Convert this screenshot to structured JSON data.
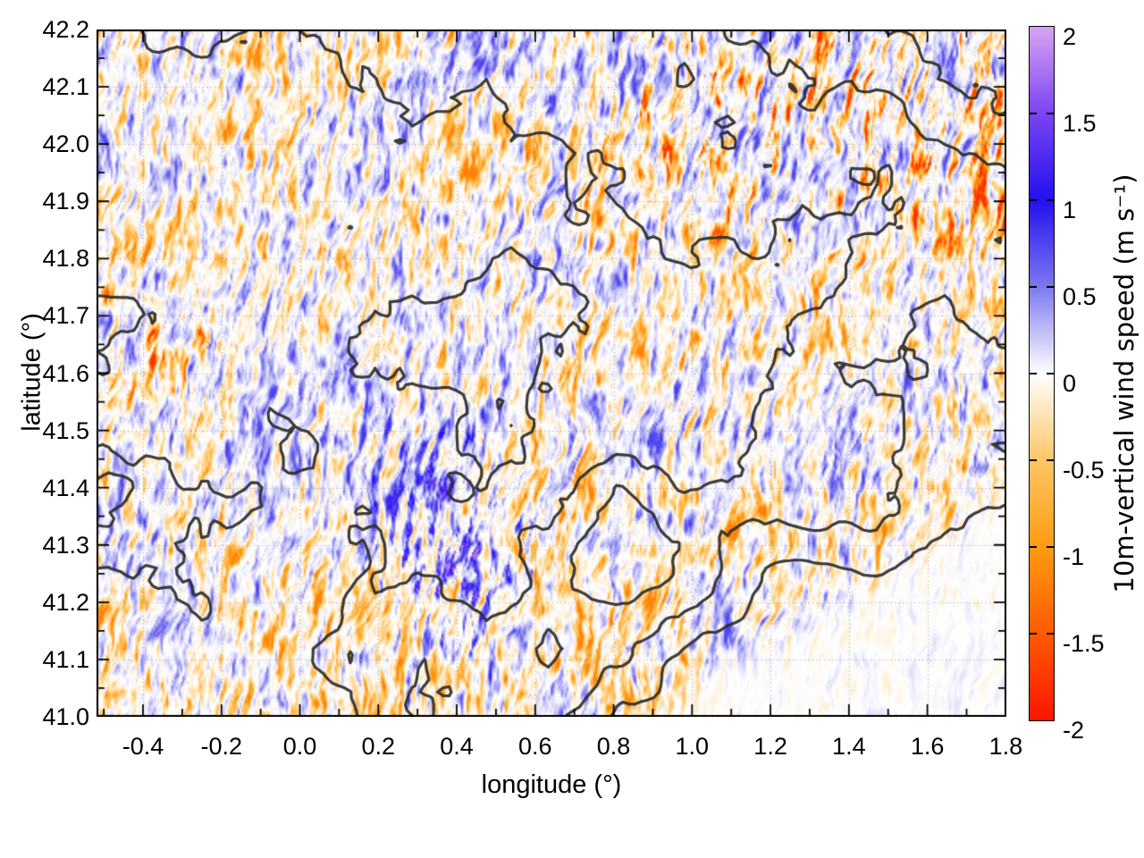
{
  "chart_data": {
    "type": "heatmap",
    "subtype": "filled-field-with-contour-lines",
    "title": "",
    "xlabel": "longitude (°)",
    "ylabel": "latitude (°)",
    "xlim": [
      -0.5185,
      1.802
    ],
    "ylim": [
      41.0,
      42.2
    ],
    "grid": true,
    "x_tick_values": [
      -0.4,
      -0.2,
      0.0,
      0.2,
      0.4,
      0.6,
      0.8,
      1.0,
      1.2,
      1.4,
      1.6,
      1.8
    ],
    "x_ticks": [
      "-0.4",
      "-0.2",
      "0.0",
      "0.2",
      "0.4",
      "0.6",
      "0.8",
      "1.0",
      "1.2",
      "1.4",
      "1.6",
      "1.8"
    ],
    "x_minor_step": 0.1,
    "y_tick_values": [
      41.0,
      41.1,
      41.2,
      41.3,
      41.4,
      41.5,
      41.6,
      41.7,
      41.8,
      41.9,
      42.0,
      42.1,
      42.2
    ],
    "y_ticks": [
      "41.0",
      "41.1",
      "41.2",
      "41.3",
      "41.4",
      "41.5",
      "41.6",
      "41.7",
      "41.8",
      "41.9",
      "42.0",
      "42.1",
      "42.2"
    ],
    "y_minor_step": 0.05,
    "colorbar": {
      "label": "10m-vertical wind speed (m s⁻¹)",
      "range": [
        -2,
        2
      ],
      "tick_values": [
        2,
        1.5,
        1,
        0.5,
        0,
        -0.5,
        -1,
        -1.5,
        -2
      ],
      "ticks": [
        "2",
        "1.5",
        "1",
        "0.5",
        "0",
        "-0.5",
        "-1",
        "-1.5",
        "-2"
      ],
      "palette_stops": [
        {
          "v": 2.0,
          "color": "#d9a2f2"
        },
        {
          "v": 1.5,
          "color": "#7a45f2"
        },
        {
          "v": 1.0,
          "color": "#2410ee"
        },
        {
          "v": 0.5,
          "color": "#7d78f0"
        },
        {
          "v": 0.0,
          "color": "#ffffff"
        },
        {
          "v": -0.5,
          "color": "#ffc566"
        },
        {
          "v": -1.0,
          "color": "#ff9b12"
        },
        {
          "v": -1.5,
          "color": "#ff5a00"
        },
        {
          "v": -2.0,
          "color": "#fb1500"
        }
      ]
    },
    "field_pattern": {
      "background": "near-zero vertical wind (white), fine quasi-vertical filaments of weak downdraft (pale orange) and updraft (pale blue)",
      "regions": [
        {
          "area": "northeast (lon > 0.5, lat > 41.8)",
          "value": "downdraft streaks to about -1 (orange wash)"
        },
        {
          "area": "west ridge (lon about -0.4, lat about 41.65)",
          "value": "downdraft band to about -0.9"
        },
        {
          "area": "center-south (lon 0.25-0.55, lat 41.1-41.45)",
          "value": "mixed strong updraft/downdraft knots, about +1 to -1"
        },
        {
          "area": "southeast offshore corner (lon > 1.0, lat < 41.3)",
          "value": "calm, near 0"
        }
      ]
    },
    "contours": {
      "description": "thick dark terrain-like contour lines overlaid on the field",
      "levels": [
        1,
        2,
        3,
        4
      ],
      "color": "#2d2d2d",
      "proxy_grid_extent": {
        "lon": [
          -0.5185,
          1.802
        ],
        "lat": [
          42.2,
          41.0
        ]
      },
      "proxy_grid": [
        [
          1.6,
          2.2,
          2.4,
          1.8,
          2.4,
          2.6,
          2.2,
          2.8,
          2.4,
          2.2,
          3.0,
          3.8,
          4.2,
          4.4,
          4.6
        ],
        [
          1.4,
          1.8,
          1.6,
          1.5,
          2.0,
          2.2,
          1.8,
          2.4,
          2.6,
          2.0,
          2.6,
          3.2,
          2.8,
          3.6,
          4.2
        ],
        [
          0.9,
          1.3,
          1.6,
          1.4,
          1.6,
          1.8,
          1.5,
          1.6,
          2.2,
          2.4,
          2.0,
          2.4,
          2.2,
          2.6,
          3.0
        ],
        [
          1.2,
          1.5,
          1.2,
          1.4,
          1.2,
          1.5,
          1.3,
          1.6,
          1.8,
          2.2,
          2.4,
          1.8,
          2.0,
          2.4,
          2.2
        ],
        [
          2.3,
          2.0,
          1.6,
          1.2,
          1.5,
          0.8,
          0.7,
          0.8,
          1.4,
          1.8,
          1.6,
          2.0,
          2.4,
          1.8,
          2.6
        ],
        [
          2.1,
          1.8,
          1.4,
          1.6,
          1.1,
          0.7,
          0.6,
          0.9,
          1.2,
          1.6,
          2.0,
          2.4,
          1.8,
          2.2,
          1.6
        ],
        [
          1.1,
          0.9,
          1.3,
          0.8,
          1.5,
          1.2,
          0.9,
          1.3,
          1.8,
          1.5,
          2.2,
          2.6,
          2.4,
          1.6,
          2.0
        ],
        [
          0.8,
          1.2,
          0.9,
          1.4,
          1.8,
          1.5,
          1.2,
          2.0,
          3.4,
          2.6,
          2.2,
          2.8,
          2.0,
          1.4,
          1.1
        ],
        [
          1.3,
          1.0,
          1.5,
          1.2,
          1.8,
          2.2,
          1.6,
          2.4,
          3.8,
          2.8,
          1.4,
          0.4,
          0.8,
          0.3,
          0.2
        ],
        [
          1.6,
          1.4,
          1.1,
          1.6,
          2.2,
          2.8,
          2.2,
          3.2,
          2.2,
          1.2,
          0.4,
          0.2,
          0.1,
          0.1,
          0.1
        ],
        [
          1.9,
          1.6,
          1.3,
          1.1,
          1.8,
          3.0,
          2.6,
          2.2,
          1.0,
          0.5,
          0.2,
          0.1,
          0.1,
          0.1,
          0.1
        ]
      ]
    }
  }
}
